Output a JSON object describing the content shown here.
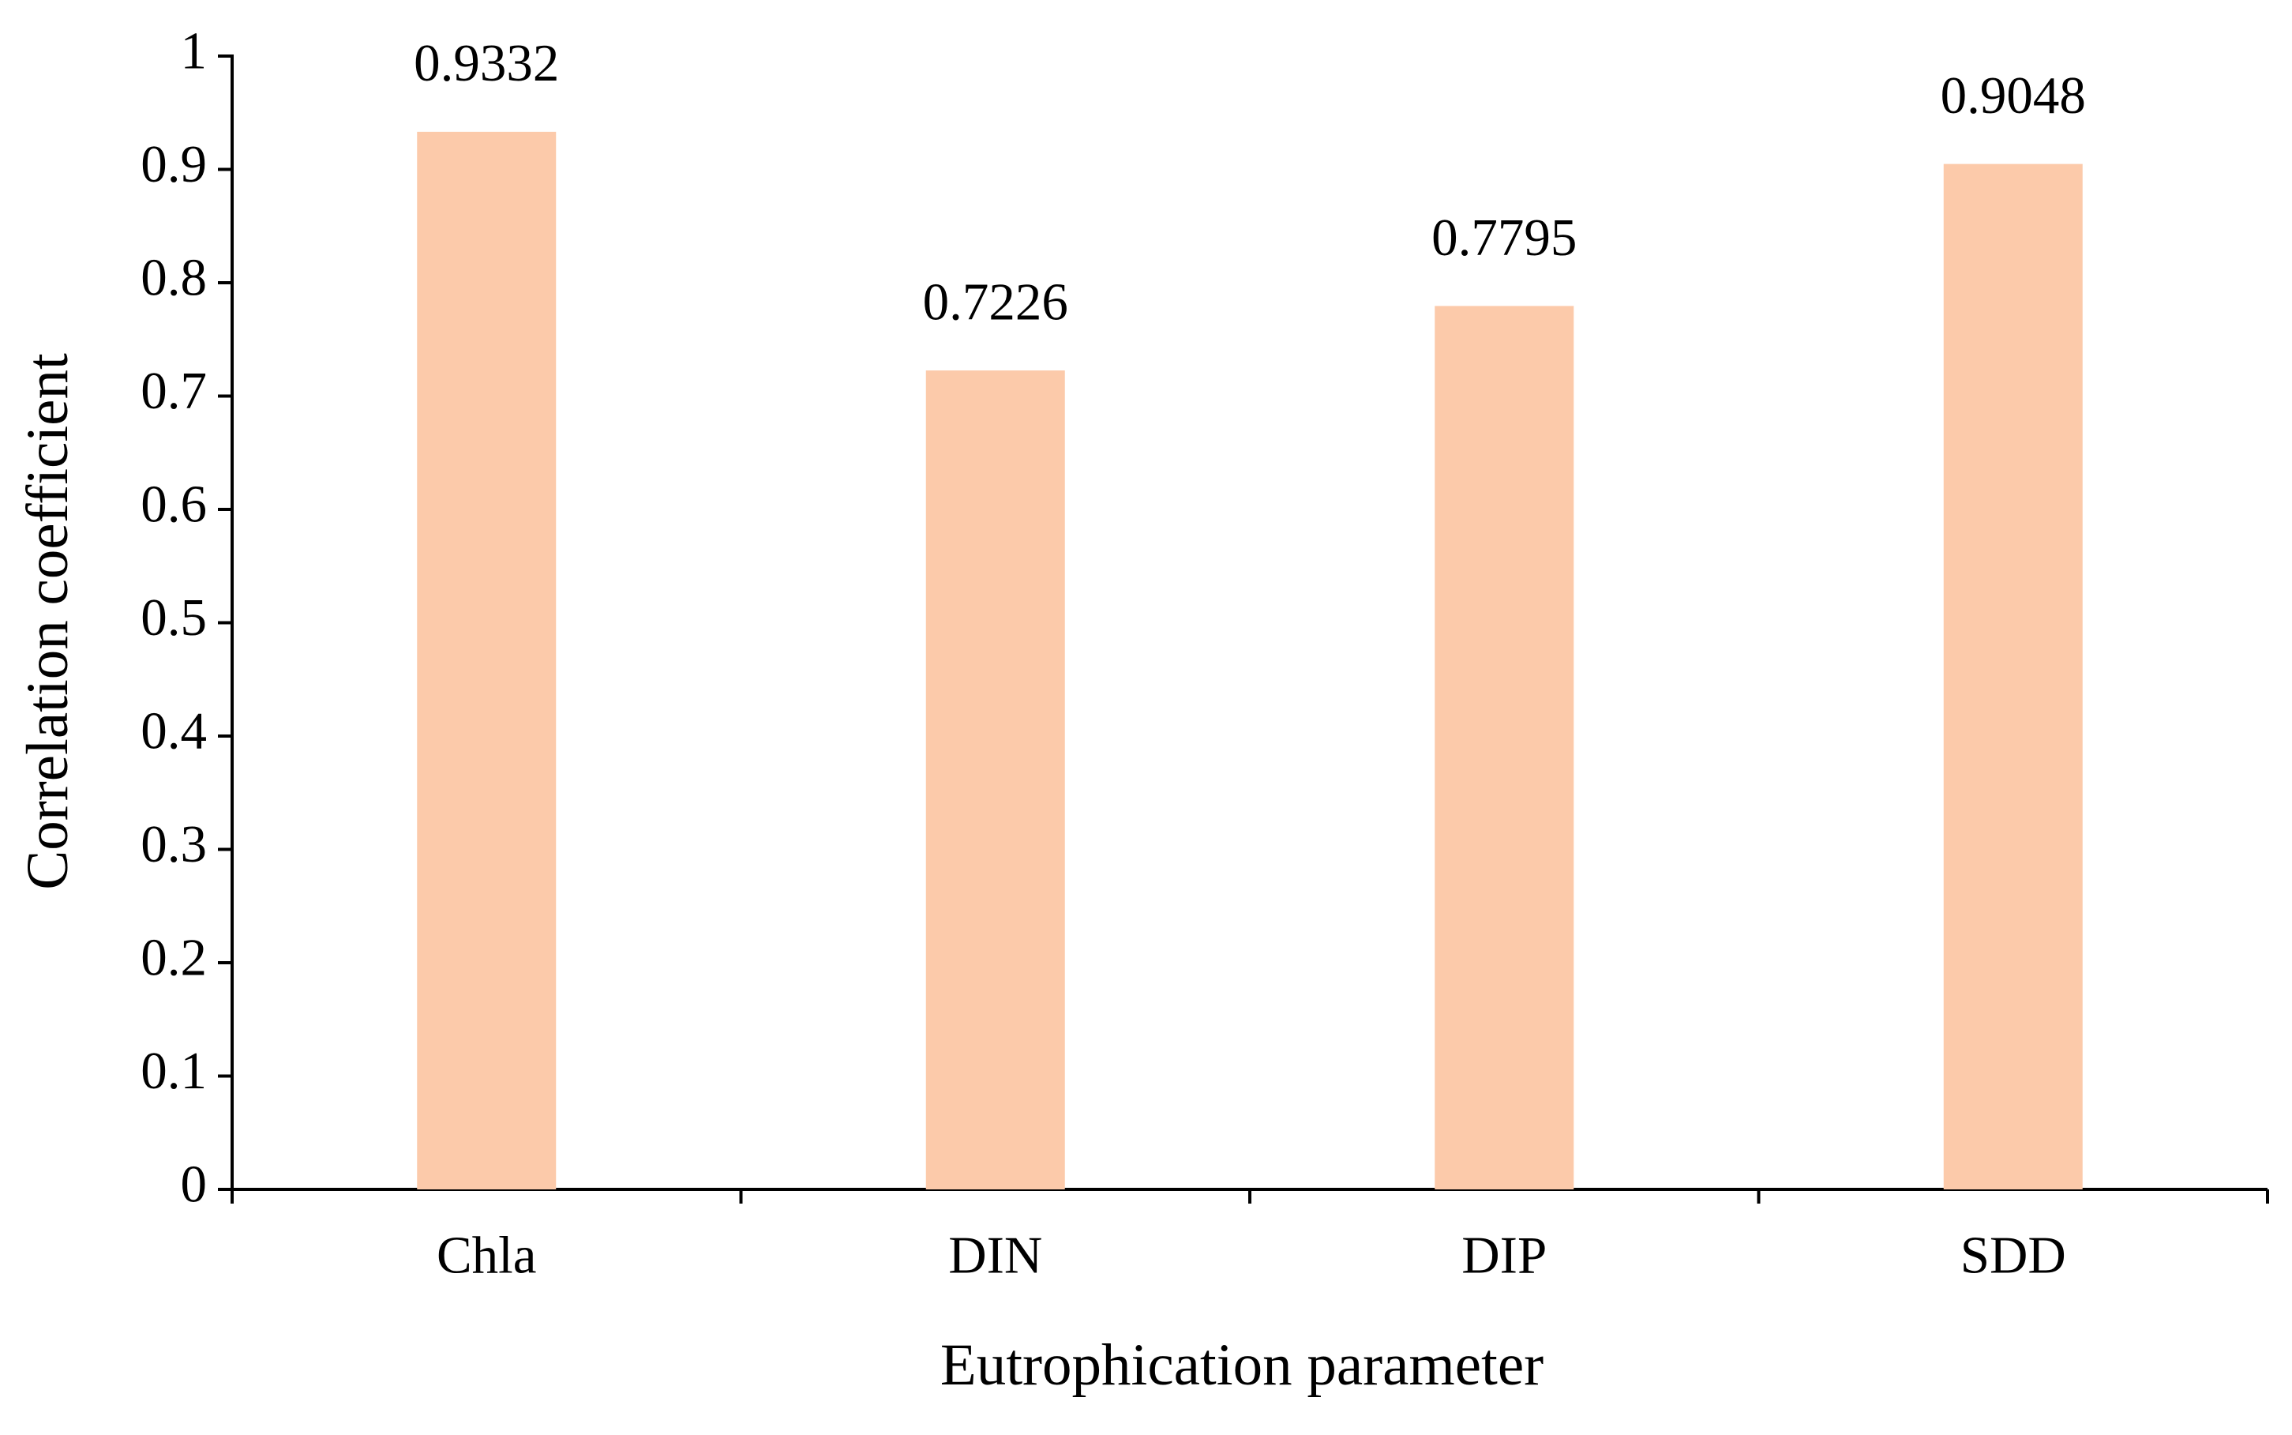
{
  "chart_data": {
    "type": "bar",
    "categories": [
      "Chla",
      "DIN",
      "DIP",
      "SDD"
    ],
    "values": [
      0.9332,
      0.7226,
      0.7795,
      0.9048
    ],
    "color": "#fccaaa",
    "xlabel": "Eutrophication parameter",
    "ylabel": "Correlation coefficient",
    "ylim": [
      0,
      1
    ],
    "yticks": [
      0,
      0.1,
      0.2,
      0.3,
      0.4,
      0.5,
      0.6,
      0.7,
      0.8,
      0.9,
      1
    ],
    "grid": false
  }
}
